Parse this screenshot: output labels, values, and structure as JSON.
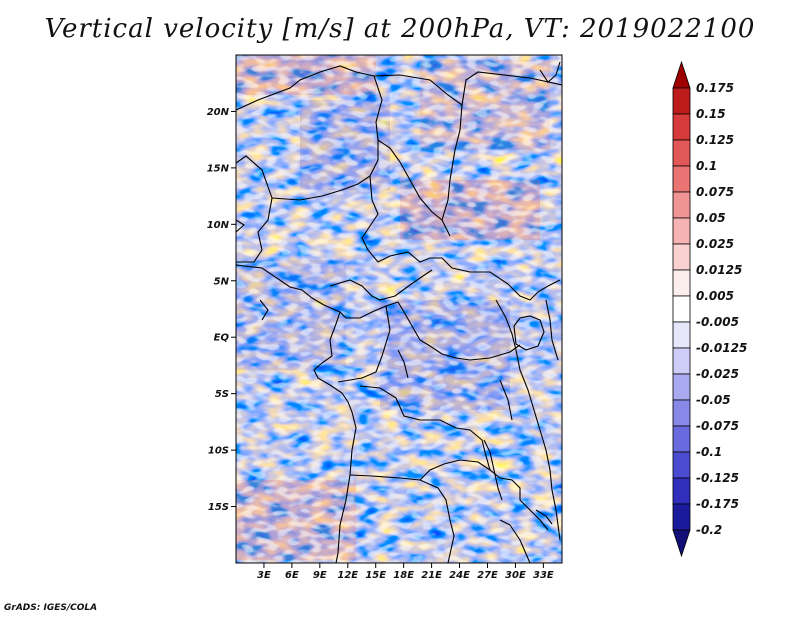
{
  "chart_data": {
    "type": "heatmap",
    "title": "Vertical velocity [m/s] at 200hPa, VT: 2019022100",
    "variable": "Vertical velocity",
    "units": "m/s",
    "level": "200hPa",
    "valid_time": "2019022100",
    "lon_range": [
      0,
      35
    ],
    "lat_range": [
      -20,
      25
    ],
    "x_ticks": [
      "3E",
      "6E",
      "9E",
      "12E",
      "15E",
      "18E",
      "21E",
      "24E",
      "27E",
      "30E",
      "33E"
    ],
    "x_tick_values": [
      3,
      6,
      9,
      12,
      15,
      18,
      21,
      24,
      27,
      30,
      33
    ],
    "y_ticks": [
      "20N",
      "15N",
      "10N",
      "5N",
      "EQ",
      "5S",
      "10S",
      "15S"
    ],
    "y_tick_values": [
      20,
      15,
      10,
      5,
      0,
      -5,
      -10,
      -15
    ],
    "colorbar": {
      "levels": [
        "0.175",
        "0.15",
        "0.125",
        "0.1",
        "0.075",
        "0.05",
        "0.025",
        "0.0125",
        "0.005",
        "-0.005",
        "-0.0125",
        "-0.025",
        "-0.05",
        "-0.075",
        "-0.1",
        "-0.125",
        "-0.175",
        "-0.2"
      ],
      "colors": [
        "#9e0000",
        "#be1c1c",
        "#d63a3a",
        "#e25757",
        "#ea7474",
        "#f09393",
        "#f5b3b3",
        "#f9d1d1",
        "#fdeeee",
        "#ffffff",
        "#e7e7fb",
        "#cdcdf7",
        "#aaaaf0",
        "#8888e8",
        "#6a6adf",
        "#4c4cd2",
        "#2f2fbc",
        "#1a1a9c",
        "#120e78"
      ]
    }
  },
  "credit": "GrADS: IGES/COLA"
}
